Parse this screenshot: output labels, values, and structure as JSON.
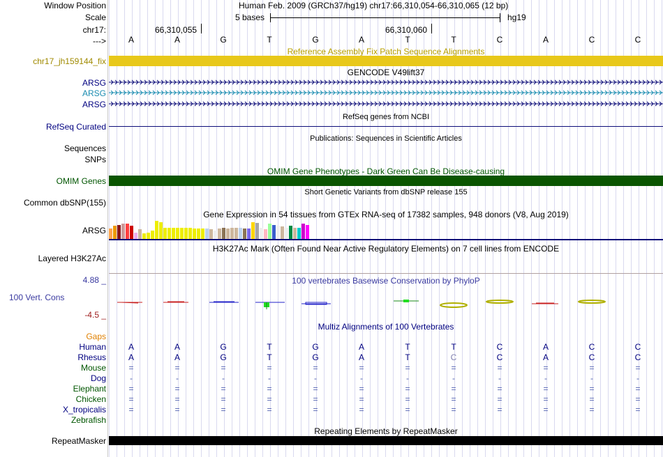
{
  "header": {
    "window_position_label": "Window Position",
    "scale_label": "Scale",
    "chrom_label": "chr17:",
    "arrow_label": "--->",
    "position_text": "Human Feb. 2009 (GRCh37/hg19)   chr17:66,310,054-66,310,065 (12 bp)",
    "scale_bases": "5 bases",
    "scale_db": "hg19",
    "coord_1": "66,310,055",
    "coord_2": "66,310,060"
  },
  "bases": [
    "A",
    "A",
    "G",
    "T",
    "G",
    "A",
    "T",
    "T",
    "C",
    "A",
    "C",
    "C"
  ],
  "tracks": {
    "fix_patch": {
      "title": "Reference Assembly Fix Patch Sequence Alignments",
      "label": "chr17_jh159144_fix",
      "color": "#e8c81a"
    },
    "gencode": {
      "title": "GENCODE V49lift37",
      "labels": [
        "ARSG",
        "ARSG",
        "ARSG"
      ]
    },
    "refseq": {
      "title": "RefSeq genes from NCBI",
      "label": "RefSeq Curated"
    },
    "publications": {
      "title": "Publications: Sequences in Scientific Articles",
      "label_1": "Sequences",
      "label_2": "SNPs"
    },
    "omim": {
      "title": "OMIM Gene Phenotypes - Dark Green Can Be Disease-causing",
      "label": "OMIM Genes",
      "color": "#0a5500"
    },
    "dbsnp": {
      "title": "Short Genetic Variants from dbSNP release 155",
      "label": "Common dbSNP(155)"
    },
    "gtex": {
      "title": "Gene Expression in 54 tissues from GTEx RNA-seq of 17382 samples, 948 donors (V8, Aug 2019)",
      "label": "ARSG",
      "bars": [
        {
          "c": "#ffa54f",
          "v": 0.55
        },
        {
          "c": "#ee9a00",
          "v": 0.7
        },
        {
          "c": "#8b1a1a",
          "v": 0.75
        },
        {
          "c": "#cd9b9b",
          "v": 0.8
        },
        {
          "c": "#ff4040",
          "v": 0.8
        },
        {
          "c": "#cd0000",
          "v": 0.7
        },
        {
          "c": "#eeaeee",
          "v": 0.35
        },
        {
          "c": "#cdb79e",
          "v": 0.5
        },
        {
          "c": "#eeee00",
          "v": 0.3
        },
        {
          "c": "#eeee00",
          "v": 0.35
        },
        {
          "c": "#eeee00",
          "v": 0.45
        },
        {
          "c": "#eeee00",
          "v": 0.95
        },
        {
          "c": "#eeee00",
          "v": 0.9
        },
        {
          "c": "#eeee00",
          "v": 0.6
        },
        {
          "c": "#eeee00",
          "v": 0.6
        },
        {
          "c": "#eeee00",
          "v": 0.6
        },
        {
          "c": "#eeee00",
          "v": 0.6
        },
        {
          "c": "#eeee00",
          "v": 0.6
        },
        {
          "c": "#eeee00",
          "v": 0.6
        },
        {
          "c": "#eeee00",
          "v": 0.6
        },
        {
          "c": "#eeee00",
          "v": 0.55
        },
        {
          "c": "#eeee00",
          "v": 0.55
        },
        {
          "c": "#eeee00",
          "v": 0.55
        },
        {
          "c": "#bcd2ee",
          "v": 0.55
        },
        {
          "c": "#cdb79e",
          "v": 0.5
        },
        {
          "c": "#eeeeee",
          "v": 0.45
        },
        {
          "c": "#cdb79e",
          "v": 0.55
        },
        {
          "c": "#8b7355",
          "v": 0.6
        },
        {
          "c": "#cdb79e",
          "v": 0.55
        },
        {
          "c": "#cdb79e",
          "v": 0.6
        },
        {
          "c": "#cdb79e",
          "v": 0.6
        },
        {
          "c": "#bcd2ee",
          "v": 0.6
        },
        {
          "c": "#8b7355",
          "v": 0.55
        },
        {
          "c": "#7a67ee",
          "v": 0.55
        },
        {
          "c": "#ffd700",
          "v": 0.9
        },
        {
          "c": "#a6a6a6",
          "v": 0.85
        },
        {
          "c": "#eeeeee",
          "v": 0.6
        },
        {
          "c": "#ffb6c1",
          "v": 0.5
        },
        {
          "c": "#9aff9a",
          "v": 0.8
        },
        {
          "c": "#3a5fcd",
          "v": 0.75
        },
        {
          "c": "#eeeeee",
          "v": 0.7
        },
        {
          "c": "#cdb79e",
          "v": 0.65
        },
        {
          "c": "#eeeeee",
          "v": 0.6
        },
        {
          "c": "#008b45",
          "v": 0.7
        },
        {
          "c": "#cdb79e",
          "v": 0.6
        },
        {
          "c": "#00cdcd",
          "v": 0.6
        },
        {
          "c": "#cd00cd",
          "v": 0.8
        },
        {
          "c": "#ff00ff",
          "v": 0.75
        }
      ]
    },
    "h3k27ac": {
      "title": "H3K27Ac Mark (Often Found Near Active Regulatory Elements) on 7 cell lines from ENCODE",
      "label": "Layered H3K27Ac"
    },
    "phylop": {
      "title": "100 vertebrates Basewise Conservation by PhyloP",
      "label": "100 Vert. Cons",
      "max_label": "4.88 _",
      "min_label": "-4.5 _"
    },
    "multiz": {
      "title": "Multiz Alignments of 100 Vertebrates",
      "gaps_label": "Gaps",
      "species": [
        {
          "name": "Human",
          "color": "#000080",
          "seq": [
            "A",
            "A",
            "G",
            "T",
            "G",
            "A",
            "T",
            "T",
            "C",
            "A",
            "C",
            "C"
          ]
        },
        {
          "name": "Rhesus",
          "color": "#000080",
          "seq": [
            "A",
            "A",
            "G",
            "T",
            "G",
            "A",
            "T",
            "C",
            "C",
            "A",
            "C",
            "C"
          ]
        },
        {
          "name": "Mouse",
          "color": "#005500",
          "seq": [
            "=",
            "=",
            "=",
            "=",
            "=",
            "=",
            "=",
            "=",
            "=",
            "=",
            "=",
            "="
          ]
        },
        {
          "name": "Dog",
          "color": "#000080",
          "seq": [
            "-",
            "-",
            "-",
            "-",
            "-",
            "-",
            "-",
            "-",
            "-",
            "-",
            "-",
            "-"
          ]
        },
        {
          "name": "Elephant",
          "color": "#005500",
          "seq": [
            "=",
            "=",
            "=",
            "=",
            "=",
            "=",
            "=",
            "=",
            "=",
            "=",
            "=",
            "="
          ]
        },
        {
          "name": "Chicken",
          "color": "#005500",
          "seq": [
            "=",
            "=",
            "=",
            "=",
            "=",
            "=",
            "=",
            "=",
            "=",
            "=",
            "=",
            "="
          ]
        },
        {
          "name": "X_tropicalis",
          "color": "#000080",
          "seq": [
            "=",
            "=",
            "=",
            "=",
            "=",
            "=",
            "=",
            "=",
            "=",
            "=",
            "=",
            "="
          ]
        },
        {
          "name": "Zebrafish",
          "color": "#005500",
          "seq": [
            "",
            "",
            "",
            "",
            "",
            "",
            "",
            "",
            "",
            "",
            "",
            ""
          ]
        }
      ]
    },
    "repeatmasker": {
      "title": "Repeating Elements by RepeatMasker",
      "label": "RepeatMasker"
    }
  }
}
